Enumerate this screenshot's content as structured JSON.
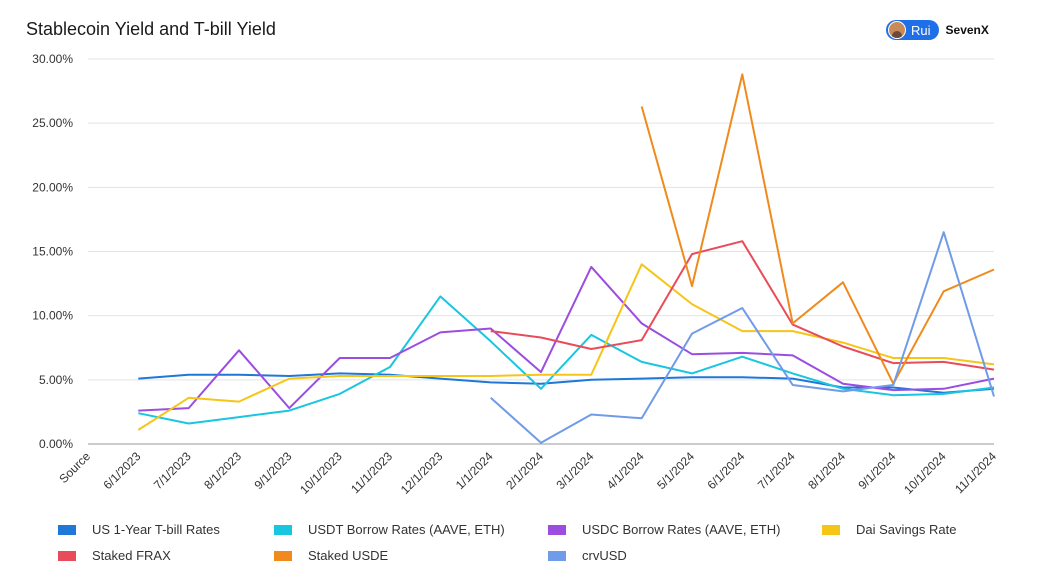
{
  "header": {
    "title": "Stablecoin Yield and T-bill Yield",
    "brand_user": "Rui",
    "brand_name": "SevenX"
  },
  "chart_data": {
    "type": "line",
    "title": "Stablecoin Yield and T-bill Yield",
    "xlabel": "",
    "ylabel": "",
    "categories": [
      "Source",
      "6/1/2023",
      "7/1/2023",
      "8/1/2023",
      "9/1/2023",
      "10/1/2023",
      "11/1/2023",
      "12/1/2023",
      "1/1/2024",
      "2/1/2024",
      "3/1/2024",
      "4/1/2024",
      "5/1/2024",
      "6/1/2024",
      "7/1/2024",
      "8/1/2024",
      "9/1/2024",
      "10/1/2024",
      "11/1/2024"
    ],
    "y_ticks": [
      "0.00%",
      "5.00%",
      "10.00%",
      "15.00%",
      "20.00%",
      "25.00%",
      "30.00%"
    ],
    "ylim": [
      0,
      30
    ],
    "grid": "horizontal",
    "legend_position": "bottom",
    "series": [
      {
        "name": "US 1-Year T-bill Rates",
        "color": "#1f77d8",
        "values": [
          null,
          5.1,
          5.4,
          5.4,
          5.3,
          5.5,
          5.4,
          5.1,
          4.8,
          4.7,
          5.0,
          5.1,
          5.2,
          5.2,
          5.1,
          4.4,
          4.4,
          4.0,
          4.3
        ]
      },
      {
        "name": "USDT Borrow Rates (AAVE, ETH)",
        "color": "#19c6e0",
        "values": [
          null,
          2.4,
          1.6,
          2.1,
          2.6,
          3.9,
          6.0,
          11.5,
          8.0,
          4.3,
          8.5,
          6.4,
          5.5,
          6.8,
          5.5,
          4.3,
          3.8,
          3.9,
          4.4
        ]
      },
      {
        "name": "USDC Borrow Rates (AAVE, ETH)",
        "color": "#9b4de0",
        "values": [
          null,
          2.6,
          2.8,
          7.3,
          2.8,
          6.7,
          6.7,
          8.7,
          9.0,
          5.6,
          13.8,
          9.4,
          7.0,
          7.1,
          6.9,
          4.7,
          4.2,
          4.3,
          5.1
        ]
      },
      {
        "name": "Dai Savings Rate",
        "color": "#f5c518",
        "values": [
          null,
          1.1,
          3.6,
          3.3,
          5.1,
          5.3,
          5.3,
          5.3,
          5.3,
          5.4,
          5.4,
          14.0,
          10.9,
          8.8,
          8.8,
          7.9,
          6.7,
          6.7,
          6.2
        ]
      },
      {
        "name": "Staked FRAX",
        "color": "#e84c5a",
        "values": [
          null,
          null,
          null,
          null,
          null,
          null,
          null,
          null,
          8.8,
          8.3,
          7.4,
          8.1,
          14.8,
          15.8,
          9.3,
          7.6,
          6.3,
          6.4,
          5.8
        ]
      },
      {
        "name": "Staked USDE",
        "color": "#f08a1c",
        "values": [
          null,
          null,
          null,
          null,
          null,
          null,
          null,
          null,
          null,
          null,
          null,
          26.3,
          12.3,
          28.8,
          9.4,
          12.6,
          4.7,
          11.9,
          13.6
        ]
      },
      {
        "name": "crvUSD",
        "color": "#6f9be8",
        "values": [
          null,
          null,
          null,
          null,
          null,
          null,
          null,
          null,
          3.6,
          0.1,
          2.3,
          2.0,
          8.6,
          10.6,
          4.6,
          4.1,
          4.6,
          16.5,
          3.7
        ]
      }
    ]
  }
}
